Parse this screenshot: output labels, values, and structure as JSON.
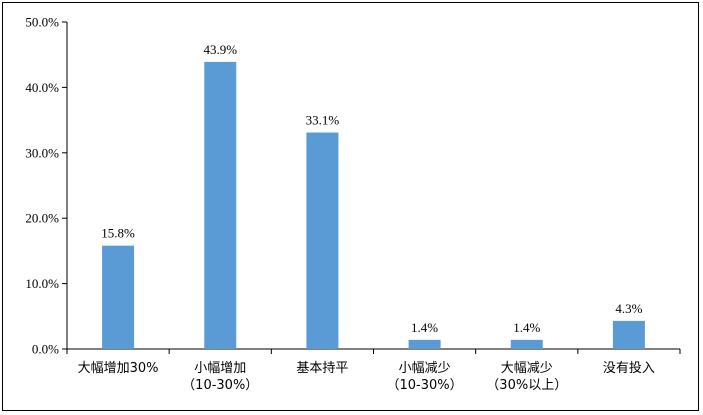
{
  "chart_data": {
    "type": "bar",
    "categories": [
      [
        "大幅增加30%"
      ],
      [
        "小幅增加",
        "（10-30%）"
      ],
      [
        "基本持平"
      ],
      [
        "小幅减少",
        "（10-30%）"
      ],
      [
        "大幅减少",
        "（30%以上）"
      ],
      [
        "没有投入"
      ]
    ],
    "values": [
      15.8,
      43.9,
      33.1,
      1.4,
      1.4,
      4.3
    ],
    "data_labels": [
      "15.8%",
      "43.9%",
      "33.1%",
      "1.4%",
      "1.4%",
      "4.3%"
    ],
    "ylim": [
      0,
      50
    ],
    "yticks": [
      0,
      10,
      20,
      30,
      40,
      50
    ],
    "ytick_labels": [
      "0.0%",
      "10.0%",
      "20.0%",
      "30.0%",
      "40.0%",
      "50.0%"
    ],
    "title": "",
    "xlabel": "",
    "ylabel": "",
    "grid": false,
    "bar_color": "#5b9bd5"
  }
}
